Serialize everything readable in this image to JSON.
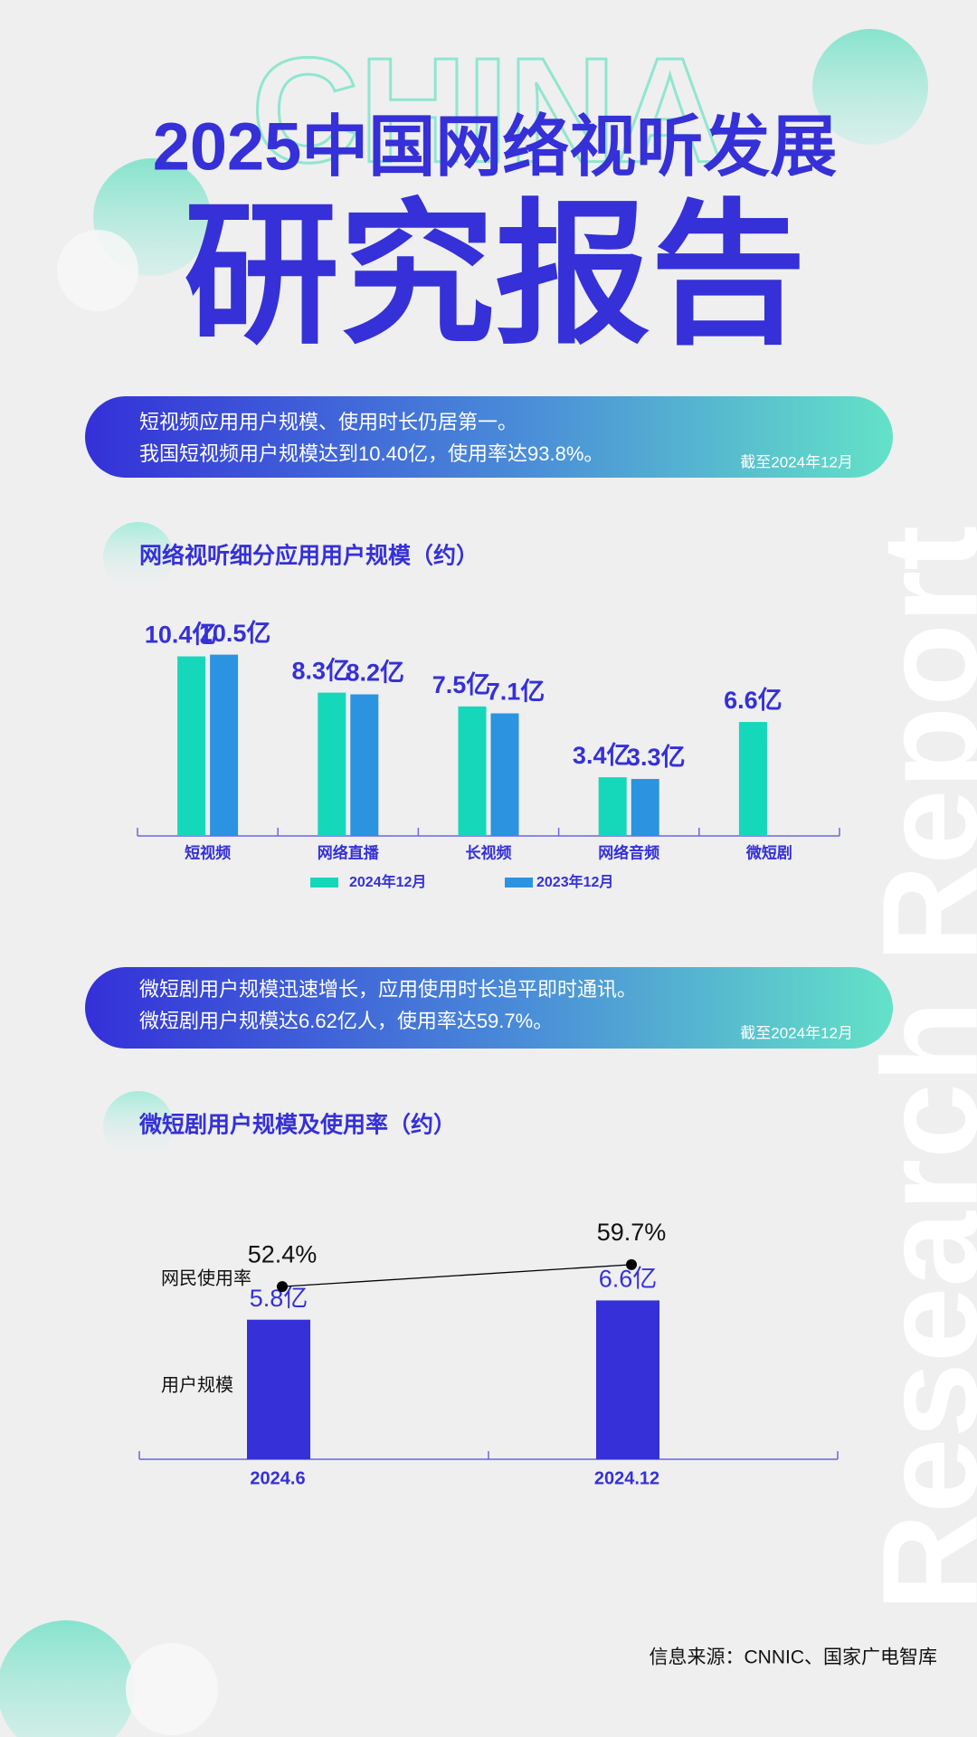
{
  "header": {
    "watermark": "CHINA",
    "title_line1": "2025中国网络视听发展",
    "title_line2": "研究报告",
    "side_text": "Research Report"
  },
  "banners": [
    {
      "lines": [
        "短视频应用用户规模、使用时长仍居第一。",
        "我国短视频用户规模达到10.40亿，使用率达93.8%。"
      ],
      "note": "截至2024年12月"
    },
    {
      "lines": [
        "微短剧用户规模迅速增长，应用使用时长追平即时通讯。",
        "微短剧用户规模达6.62亿人，使用率达59.7%。"
      ],
      "note": "截至2024年12月"
    }
  ],
  "chart_data": [
    {
      "type": "bar",
      "title": "网络视听细分应用用户规模（约）",
      "categories": [
        "短视频",
        "网络直播",
        "长视频",
        "网络音频",
        "微短剧"
      ],
      "series": [
        {
          "name": "2024年12月",
          "color": "#14d8b9",
          "values": [
            10.4,
            8.3,
            7.5,
            3.4,
            6.6
          ],
          "value_labels": [
            "10.4亿",
            "8.3亿",
            "7.5亿",
            "3.4亿",
            "6.6亿"
          ]
        },
        {
          "name": "2023年12月",
          "color": "#2b93e0",
          "values": [
            10.5,
            8.2,
            7.1,
            3.3,
            null
          ],
          "value_labels": [
            "10.5亿",
            "8.2亿",
            "7.1亿",
            "3.3亿",
            null
          ]
        }
      ],
      "ylim": [
        0,
        12
      ],
      "legend": "bottom"
    },
    {
      "type": "combo",
      "title": "微短剧用户规模及使用率（约）",
      "categories": [
        "2024.6",
        "2024.12"
      ],
      "series": [
        {
          "name": "用户规模",
          "type": "bar",
          "color": "#3530d8",
          "values": [
            5.8,
            6.6
          ],
          "value_labels": [
            "5.8亿",
            "6.6亿"
          ]
        },
        {
          "name": "网民使用率",
          "type": "line",
          "axis": "y2",
          "color": "#000000",
          "values": [
            52.4,
            59.7
          ],
          "value_labels": [
            "52.4%",
            "59.7%"
          ]
        }
      ],
      "ylim": [
        0,
        10
      ],
      "y2lim": [
        -5,
        75
      ]
    }
  ],
  "source": "信息来源：CNNIC、国家广电智库"
}
